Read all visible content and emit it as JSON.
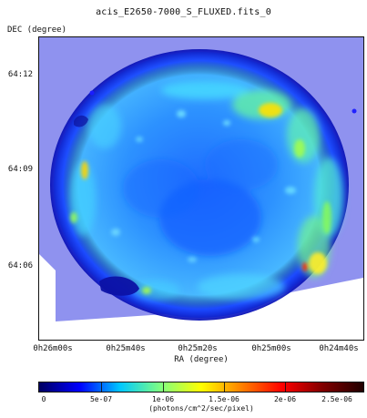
{
  "header": {
    "title": "acis_E2650-7000_S_FLUXED.fits_0"
  },
  "axes": {
    "y_label": "DEC (degree)",
    "x_label": "RA (degree)",
    "y_ticks": [
      "64:12",
      "64:09",
      "64:06"
    ],
    "x_ticks": [
      "0h26m00s",
      "0h25m40s",
      "0h25m20s",
      "0h25m00s",
      "0h24m40s"
    ]
  },
  "colorbar": {
    "labels": [
      "0",
      "5e-07",
      "1e-06",
      "1.5e-06",
      "2e-06",
      "2.5e-06"
    ],
    "units": "(photons/cm^2/sec/pixel)",
    "stops": [
      "#000060",
      "#0000ff",
      "#00c8ff",
      "#80ff80",
      "#ffff00",
      "#ff8000",
      "#ff0000",
      "#800000",
      "#200000"
    ]
  },
  "colors": {
    "background_fill": "#8f92ef",
    "shell_blue": "#1874ff",
    "inner_blue": "#43b3ff",
    "dark_edge": "#0a0a9e",
    "hot_green": "#7dff7d",
    "hot_yellow": "#ffe600",
    "hot_red": "#ff2a00"
  }
}
